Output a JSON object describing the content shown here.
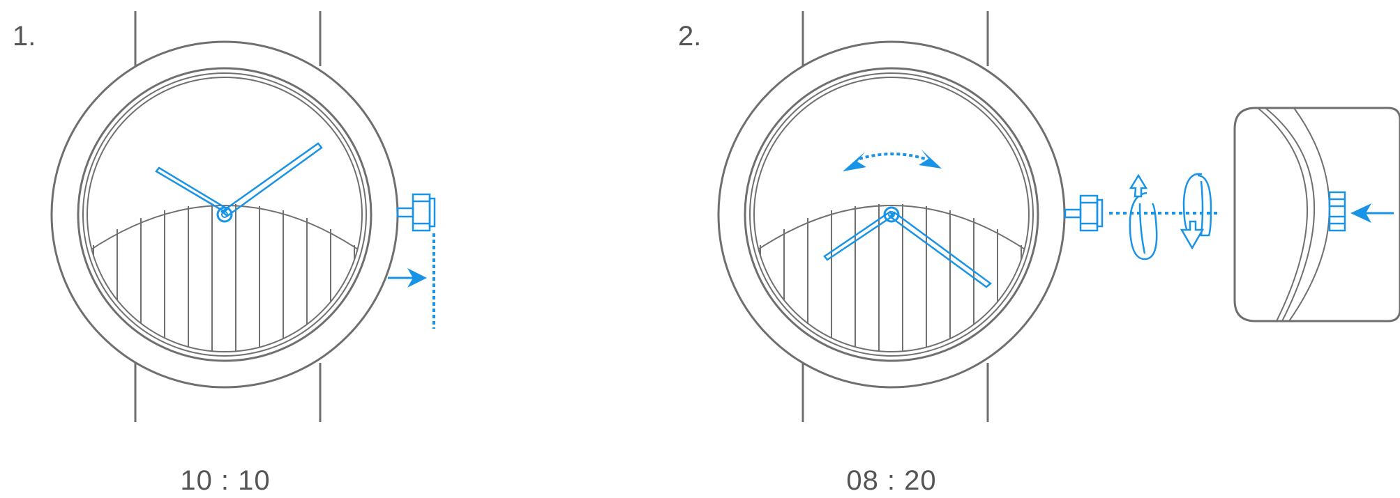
{
  "steps": [
    {
      "number": "1.",
      "time": "10 : 10"
    },
    {
      "number": "2.",
      "time": "08 : 20"
    }
  ],
  "colors": {
    "outline": "#6f6f6f",
    "accent": "#1993e6",
    "background": "#ffffff"
  }
}
